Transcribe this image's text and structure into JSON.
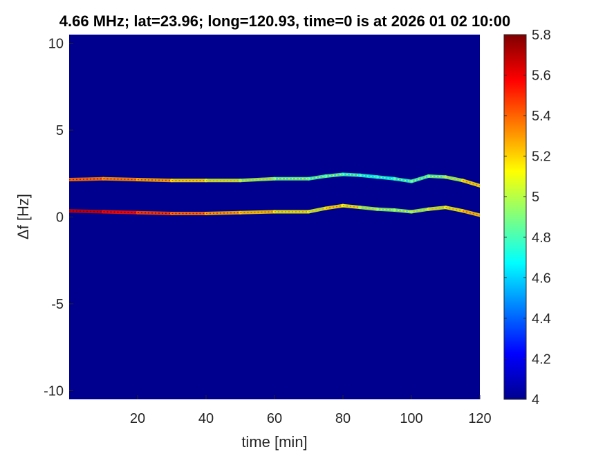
{
  "chart_data": {
    "type": "heatmap",
    "title": "4.66 MHz;  lat=23.96; long=120.93, time=0 is at 2026 01 02 10:00",
    "xlabel": "time [min]",
    "ylabel": "Δf [Hz]",
    "xlim": [
      0,
      120
    ],
    "ylim": [
      -10.5,
      10.5
    ],
    "xticks": [
      20,
      40,
      60,
      80,
      100,
      120
    ],
    "yticks": [
      10,
      5,
      0,
      -5,
      -10
    ],
    "xtick_labels": [
      "20",
      "40",
      "60",
      "80",
      "100",
      "120"
    ],
    "ytick_labels": [
      "10",
      "5",
      "0",
      "-5",
      "-10"
    ],
    "colorbar": {
      "colormap": "jet",
      "range": [
        4,
        5.8
      ],
      "ticks": [
        5.8,
        5.6,
        5.4,
        5.2,
        5,
        4.8,
        4.6,
        4.4,
        4.2,
        4
      ],
      "tick_labels": [
        "5.8",
        "5.6",
        "5.4",
        "5.2",
        "5",
        "4.8",
        "4.6",
        "4.4",
        "4.2",
        "4"
      ]
    },
    "background_value": 4,
    "series": [
      {
        "x": [
          0,
          10,
          20,
          30,
          40,
          50,
          60,
          70,
          75,
          80,
          85,
          90,
          95,
          100,
          105,
          110,
          115,
          120
        ],
        "y": [
          2.15,
          2.2,
          2.15,
          2.1,
          2.1,
          2.1,
          2.2,
          2.2,
          2.35,
          2.45,
          2.4,
          2.3,
          2.2,
          2.05,
          2.35,
          2.3,
          2.1,
          1.8
        ],
        "value": [
          5.4,
          5.3,
          5.3,
          5.2,
          5.1,
          5.0,
          4.9,
          4.8,
          4.8,
          4.8,
          4.7,
          4.7,
          4.7,
          4.8,
          4.8,
          4.9,
          5.0,
          5.3
        ]
      },
      {
        "x": [
          0,
          10,
          20,
          30,
          40,
          50,
          60,
          70,
          75,
          80,
          85,
          90,
          95,
          100,
          105,
          110,
          115,
          120
        ],
        "y": [
          0.35,
          0.3,
          0.25,
          0.2,
          0.2,
          0.25,
          0.3,
          0.3,
          0.5,
          0.65,
          0.55,
          0.45,
          0.4,
          0.3,
          0.45,
          0.55,
          0.35,
          0.1
        ],
        "value": [
          5.7,
          5.6,
          5.5,
          5.4,
          5.3,
          5.2,
          5.2,
          5.0,
          5.1,
          5.2,
          5.0,
          4.9,
          4.9,
          4.9,
          5.0,
          5.1,
          5.1,
          5.3
        ]
      }
    ]
  }
}
